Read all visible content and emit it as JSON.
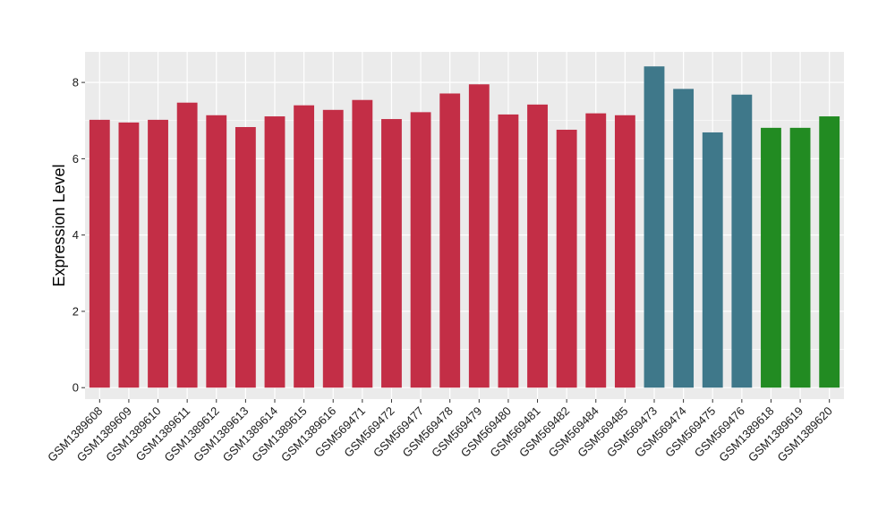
{
  "chart_data": {
    "type": "bar",
    "title": "",
    "xlabel": "",
    "ylabel": "Expression Level",
    "ylim": [
      -0.3,
      8.8
    ],
    "yticks": [
      0,
      2,
      4,
      6,
      8
    ],
    "grid": true,
    "panel_color": "#ebebeb",
    "categories": [
      "GSM1389608",
      "GSM1389609",
      "GSM1389610",
      "GSM1389611",
      "GSM1389612",
      "GSM1389613",
      "GSM1389614",
      "GSM1389615",
      "GSM1389616",
      "GSM569471",
      "GSM569472",
      "GSM569477",
      "GSM569478",
      "GSM569479",
      "GSM569480",
      "GSM569481",
      "GSM569482",
      "GSM569484",
      "GSM569485",
      "GSM569473",
      "GSM569474",
      "GSM569475",
      "GSM569476",
      "GSM1389618",
      "GSM1389619",
      "GSM1389620"
    ],
    "values": [
      7.02,
      6.95,
      7.02,
      7.47,
      7.14,
      6.83,
      7.11,
      7.4,
      7.28,
      7.54,
      7.04,
      7.22,
      7.71,
      7.95,
      7.16,
      7.42,
      6.76,
      7.19,
      7.14,
      8.42,
      7.83,
      6.69,
      7.68,
      6.81,
      6.81,
      7.11
    ],
    "colors": [
      "#c32e46",
      "#c32e46",
      "#c32e46",
      "#c32e46",
      "#c32e46",
      "#c32e46",
      "#c32e46",
      "#c32e46",
      "#c32e46",
      "#c32e46",
      "#c32e46",
      "#c32e46",
      "#c32e46",
      "#c32e46",
      "#c32e46",
      "#c32e46",
      "#c32e46",
      "#c32e46",
      "#c32e46",
      "#3f788a",
      "#3f788a",
      "#3f788a",
      "#3f788a",
      "#228b22",
      "#228b22",
      "#228b22"
    ]
  }
}
